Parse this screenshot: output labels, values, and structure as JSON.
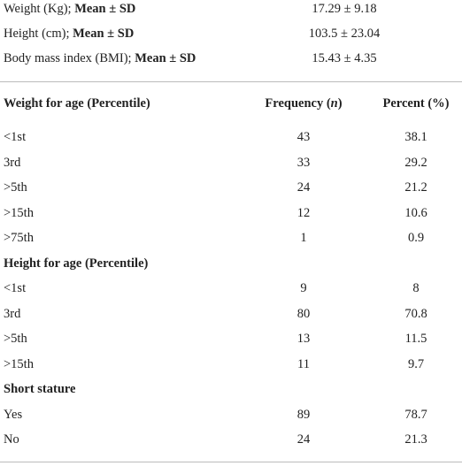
{
  "summary": [
    {
      "label": [
        "Weight (Kg); ",
        "Mean ± SD"
      ],
      "value": "17.29 ± 9.18"
    },
    {
      "label": [
        "Height (cm); ",
        "Mean ± SD"
      ],
      "value": "103.5 ± 23.04"
    },
    {
      "label": [
        "Body mass index (BMI); ",
        "Mean ± SD"
      ],
      "value": "15.43 ± 4.35"
    }
  ],
  "table": {
    "header": {
      "label": "Weight for age (Percentile)",
      "frequency": [
        "Frequency (",
        "n",
        ")"
      ],
      "percent": "Percent (%)"
    },
    "rows": [
      {
        "label": "<1st",
        "n": 43,
        "percent": 38.1
      },
      {
        "label": "3rd",
        "n": 33,
        "percent": 29.2
      },
      {
        "label": ">5th",
        "n": 24,
        "percent": 21.2
      },
      {
        "label": ">15th",
        "n": 12,
        "percent": 10.6
      },
      {
        "label": ">75th",
        "n": 1,
        "percent": 0.9
      },
      {
        "heading": "Height for age (Percentile)"
      },
      {
        "label": "<1st",
        "n": 9,
        "percent": 8
      },
      {
        "label": "3rd",
        "n": 80,
        "percent": 70.8
      },
      {
        "label": ">5th",
        "n": 13,
        "percent": 11.5
      },
      {
        "label": ">15th",
        "n": 11,
        "percent": 9.7
      },
      {
        "heading": "Short stature"
      },
      {
        "label": "Yes",
        "n": 89,
        "percent": 78.7
      },
      {
        "label": "No",
        "n": 24,
        "percent": 21.3
      }
    ]
  }
}
